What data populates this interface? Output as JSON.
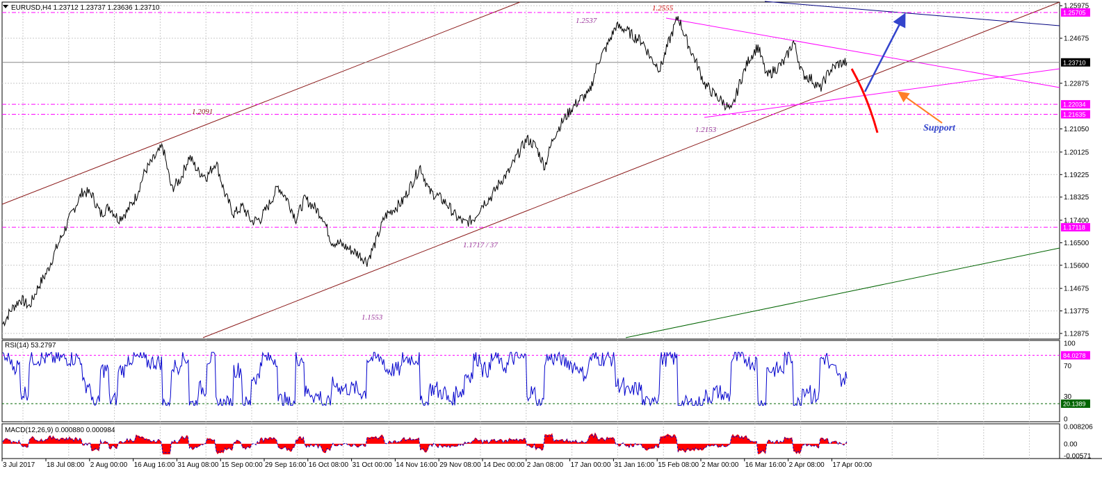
{
  "colors": {
    "price": "#000000",
    "channel": "#8b1a1a",
    "magenta": "#ff00ff",
    "navy": "#00007f",
    "green": "#006400",
    "rsi": "#0000cc",
    "macd_hist": "#ff0000",
    "macd_signal": "#0000cc",
    "red_arrow": "#ff0000",
    "blue_arrow": "#3344cc",
    "orange_arrow": "#ff7f27",
    "grid": "#c8c8c8"
  },
  "main_panel": {
    "title": "EURUSD,H4  1.23712 1.23737 1.23636 1.23710",
    "dropdown_icon": "triangle-down-icon"
  },
  "chart_data": [
    {
      "type": "line",
      "title": "EURUSD,H4  1.23712 1.23737 1.23636 1.23710",
      "symbol": "EURUSD",
      "timeframe": "H4",
      "ohlc": {
        "open": 1.23712,
        "high": 1.23737,
        "low": 1.23636,
        "close": 1.2371
      },
      "x_labels": [
        "3 Jul 2017",
        "18 Jul 08:00",
        "2 Aug 00:00",
        "16 Aug 16:00",
        "31 Aug 08:00",
        "15 Sep 00:00",
        "29 Sep 16:00",
        "16 Oct 08:00",
        "31 Oct 00:00",
        "14 Nov 16:00",
        "29 Nov 08:00",
        "14 Dec 00:00",
        "2 Jan 08:00",
        "17 Jan 00:00",
        "31 Jan 16:00",
        "15 Feb 08:00",
        "2 Mar 00:00",
        "16 Mar 16:00",
        "2 Apr 08:00",
        "17 Apr 00:00"
      ],
      "y_ticks": [
        "1.25975",
        "1.24675",
        "1.22875",
        "1.21050",
        "1.20125",
        "1.19225",
        "1.18325",
        "1.17400",
        "1.16500",
        "1.15600",
        "1.14675",
        "1.13775",
        "1.12875"
      ],
      "ylim": [
        1.1265,
        1.2612
      ],
      "price_path": {
        "anchor_x": [
          0,
          1,
          2,
          3,
          4,
          5,
          6,
          7,
          8,
          9,
          10,
          11,
          12,
          13,
          14,
          15,
          16,
          17,
          18,
          19,
          20,
          21,
          22,
          23,
          24,
          25,
          26,
          27,
          28,
          29,
          30,
          31,
          32,
          33,
          34,
          35,
          36,
          37,
          38,
          39,
          40,
          41,
          42,
          43,
          44,
          45,
          46,
          47,
          48,
          49,
          50,
          51,
          52,
          53,
          54,
          55,
          56,
          57,
          58,
          59,
          60,
          61,
          62,
          63,
          64,
          65,
          66,
          67,
          68,
          69,
          70,
          71,
          72,
          73,
          74,
          75,
          76,
          77,
          78,
          79,
          80,
          81,
          82,
          83,
          84,
          85,
          86,
          87,
          88,
          89,
          90,
          91,
          92,
          93,
          94,
          95
        ],
        "close": [
          1.1325,
          1.1385,
          1.1425,
          1.1395,
          1.1475,
          1.1535,
          1.1625,
          1.1705,
          1.1785,
          1.1855,
          1.1845,
          1.1765,
          1.1795,
          1.1745,
          1.1775,
          1.1835,
          1.1935,
          1.1985,
          1.2035,
          1.1865,
          1.1905,
          1.1995,
          1.1935,
          1.1915,
          1.1975,
          1.1845,
          1.1765,
          1.1795,
          1.1735,
          1.1745,
          1.1805,
          1.1875,
          1.1825,
          1.1745,
          1.1825,
          1.1795,
          1.1755,
          1.1655,
          1.1645,
          1.1625,
          1.1605,
          1.1575,
          1.1655,
          1.1755,
          1.1785,
          1.1815,
          1.1885,
          1.1955,
          1.1855,
          1.1835,
          1.1805,
          1.1755,
          1.1728,
          1.1745,
          1.1805,
          1.1835,
          1.1895,
          1.1935,
          1.2005,
          1.2065,
          1.2035,
          1.1955,
          1.2075,
          1.2135,
          1.2185,
          1.2225,
          1.2245,
          1.2375,
          1.2435,
          1.2515,
          1.2505,
          1.2475,
          1.2455,
          1.2385,
          1.2345,
          1.2455,
          1.2555,
          1.2455,
          1.2375,
          1.2285,
          1.2245,
          1.2215,
          1.2175,
          1.2295,
          1.2385,
          1.2435,
          1.2315,
          1.2345,
          1.2375,
          1.2455,
          1.2325,
          1.2305,
          1.2265,
          1.2335,
          1.2365,
          1.2371
        ]
      },
      "horizontal_levels": [
        {
          "value": 1.25705,
          "label": "1.25705",
          "color": "#ff00ff"
        },
        {
          "value": 1.2371,
          "label": "1.23710",
          "color": "#000000"
        },
        {
          "value": 1.22034,
          "label": "1.22034",
          "color": "#ff00ff"
        },
        {
          "value": 1.21635,
          "label": "1.21635",
          "color": "#ff00ff"
        },
        {
          "value": 1.17118,
          "label": "1.17118",
          "color": "#ff00ff"
        }
      ],
      "annotations": [
        "1.2555",
        "1.2537",
        "1.2091",
        "1.2153",
        "1.1717 / 37",
        "1.1553",
        "Support"
      ]
    },
    {
      "type": "line",
      "title": "RSI(14) 53.2797",
      "y_ticks": [
        "100",
        "70",
        "30",
        "0"
      ],
      "ylim": [
        0,
        100
      ],
      "levels": [
        {
          "value": 84.0278,
          "label": "84.0278",
          "color": "#ff00ff"
        },
        {
          "value": 20.1389,
          "label": "20.1389",
          "color": "#006400"
        }
      ],
      "last_value": 53.2797
    },
    {
      "type": "area",
      "title": "MACD(12,26,9) 0.000880 0.000984",
      "y_ticks": [
        "0.008206",
        "0.00",
        "-0.00571"
      ],
      "ylim": [
        -0.00571,
        0.008206
      ],
      "macd": 0.00088,
      "signal": 0.000984
    }
  ],
  "rsi_panel": {
    "title": "RSI(14) 53.2797",
    "ticks": [
      "100",
      "70",
      "30",
      "0"
    ]
  },
  "macd_panel": {
    "title": "MACD(12,26,9) 0.000880 0.000984",
    "ticks": [
      "0.008206",
      "0.00",
      "-0.00571"
    ]
  }
}
